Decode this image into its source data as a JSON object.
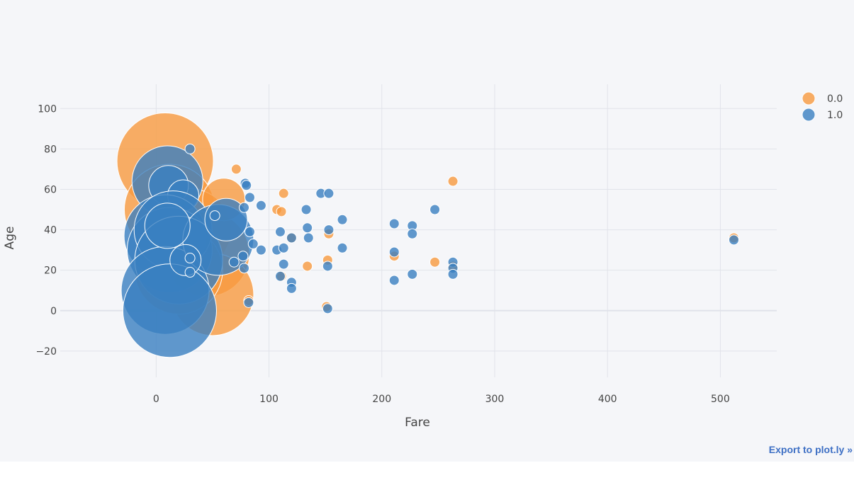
{
  "export_link": "Export to plot.ly »",
  "colors": {
    "plot_bg": "#f5f6f9",
    "grid": "#e1e3ea",
    "series_0": "#f79a3e",
    "series_1": "#3a7fc1"
  },
  "chart_data": {
    "type": "scatter",
    "xlabel": "Fare",
    "ylabel": "Age",
    "xlim": [
      -85,
      550
    ],
    "ylim": [
      -33,
      112
    ],
    "x_ticks": [
      0,
      100,
      200,
      300,
      400,
      500
    ],
    "y_ticks": [
      -20,
      0,
      20,
      40,
      60,
      80,
      100
    ],
    "grid": true,
    "legend_position": "top-right",
    "series": [
      {
        "name": "0.0",
        "color": "#f79a3e",
        "points": [
          {
            "x": 8,
            "y": 74,
            "s": 68
          },
          {
            "x": 12,
            "y": 50,
            "s": 64
          },
          {
            "x": 30,
            "y": 40,
            "s": 58
          },
          {
            "x": 45,
            "y": 28,
            "s": 60
          },
          {
            "x": 50,
            "y": 8,
            "s": 58
          },
          {
            "x": 20,
            "y": 20,
            "s": 62
          },
          {
            "x": 60,
            "y": 55,
            "s": 30
          },
          {
            "x": 71,
            "y": 70,
            "s": 7
          },
          {
            "x": 107,
            "y": 50,
            "s": 7
          },
          {
            "x": 111,
            "y": 49,
            "s": 7
          },
          {
            "x": 113,
            "y": 58,
            "s": 7
          },
          {
            "x": 111,
            "y": 17,
            "s": 7
          },
          {
            "x": 134,
            "y": 22,
            "s": 7
          },
          {
            "x": 152,
            "y": 25,
            "s": 7
          },
          {
            "x": 153,
            "y": 38,
            "s": 7
          },
          {
            "x": 151,
            "y": 2,
            "s": 7
          },
          {
            "x": 211,
            "y": 27,
            "s": 7
          },
          {
            "x": 247,
            "y": 24,
            "s": 7
          },
          {
            "x": 263,
            "y": 64,
            "s": 7
          },
          {
            "x": 263,
            "y": 22,
            "s": 7
          },
          {
            "x": 512,
            "y": 36,
            "s": 7
          },
          {
            "x": 82,
            "y": 5,
            "s": 7
          },
          {
            "x": 120,
            "y": 36,
            "s": 7
          }
        ]
      },
      {
        "name": "1.0",
        "color": "#3a7fc1",
        "points": [
          {
            "x": 10,
            "y": 64,
            "s": 50
          },
          {
            "x": 11,
            "y": 62,
            "s": 28
          },
          {
            "x": 24,
            "y": 57,
            "s": 22
          },
          {
            "x": 8,
            "y": 37,
            "s": 58
          },
          {
            "x": 12,
            "y": 30,
            "s": 60
          },
          {
            "x": 15,
            "y": 40,
            "s": 55
          },
          {
            "x": 20,
            "y": 25,
            "s": 62
          },
          {
            "x": 8,
            "y": 10,
            "s": 62
          },
          {
            "x": 12,
            "y": 0,
            "s": 66
          },
          {
            "x": 55,
            "y": 35,
            "s": 50
          },
          {
            "x": 62,
            "y": 45,
            "s": 30
          },
          {
            "x": 10,
            "y": 42,
            "s": 32
          },
          {
            "x": 26,
            "y": 25,
            "s": 22
          },
          {
            "x": 30,
            "y": 80,
            "s": 7
          },
          {
            "x": 30,
            "y": 26,
            "s": 7
          },
          {
            "x": 30,
            "y": 19,
            "s": 7
          },
          {
            "x": 52,
            "y": 47,
            "s": 7
          },
          {
            "x": 79,
            "y": 63,
            "s": 7
          },
          {
            "x": 80,
            "y": 62,
            "s": 7
          },
          {
            "x": 83,
            "y": 56,
            "s": 7
          },
          {
            "x": 93,
            "y": 52,
            "s": 7
          },
          {
            "x": 78,
            "y": 51,
            "s": 7
          },
          {
            "x": 83,
            "y": 39,
            "s": 7
          },
          {
            "x": 86,
            "y": 33,
            "s": 7
          },
          {
            "x": 93,
            "y": 30,
            "s": 7
          },
          {
            "x": 77,
            "y": 27,
            "s": 7
          },
          {
            "x": 78,
            "y": 21,
            "s": 7
          },
          {
            "x": 69,
            "y": 24,
            "s": 7
          },
          {
            "x": 82,
            "y": 4,
            "s": 7
          },
          {
            "x": 107,
            "y": 30,
            "s": 7
          },
          {
            "x": 110,
            "y": 39,
            "s": 7
          },
          {
            "x": 113,
            "y": 31,
            "s": 7
          },
          {
            "x": 120,
            "y": 36,
            "s": 7
          },
          {
            "x": 113,
            "y": 23,
            "s": 7
          },
          {
            "x": 110,
            "y": 17,
            "s": 7
          },
          {
            "x": 120,
            "y": 14,
            "s": 7
          },
          {
            "x": 120,
            "y": 11,
            "s": 7
          },
          {
            "x": 133,
            "y": 50,
            "s": 7
          },
          {
            "x": 134,
            "y": 41,
            "s": 7
          },
          {
            "x": 135,
            "y": 36,
            "s": 7
          },
          {
            "x": 146,
            "y": 58,
            "s": 7
          },
          {
            "x": 153,
            "y": 58,
            "s": 7
          },
          {
            "x": 153,
            "y": 40,
            "s": 7
          },
          {
            "x": 165,
            "y": 45,
            "s": 7
          },
          {
            "x": 165,
            "y": 31,
            "s": 7
          },
          {
            "x": 152,
            "y": 22,
            "s": 7
          },
          {
            "x": 152,
            "y": 1,
            "s": 7
          },
          {
            "x": 211,
            "y": 43,
            "s": 7
          },
          {
            "x": 211,
            "y": 29,
            "s": 7
          },
          {
            "x": 211,
            "y": 15,
            "s": 7
          },
          {
            "x": 227,
            "y": 42,
            "s": 7
          },
          {
            "x": 227,
            "y": 38,
            "s": 7
          },
          {
            "x": 227,
            "y": 18,
            "s": 7
          },
          {
            "x": 247,
            "y": 50,
            "s": 7
          },
          {
            "x": 263,
            "y": 24,
            "s": 7
          },
          {
            "x": 263,
            "y": 21,
            "s": 7
          },
          {
            "x": 263,
            "y": 18,
            "s": 7
          },
          {
            "x": 512,
            "y": 35,
            "s": 7
          }
        ]
      }
    ]
  }
}
